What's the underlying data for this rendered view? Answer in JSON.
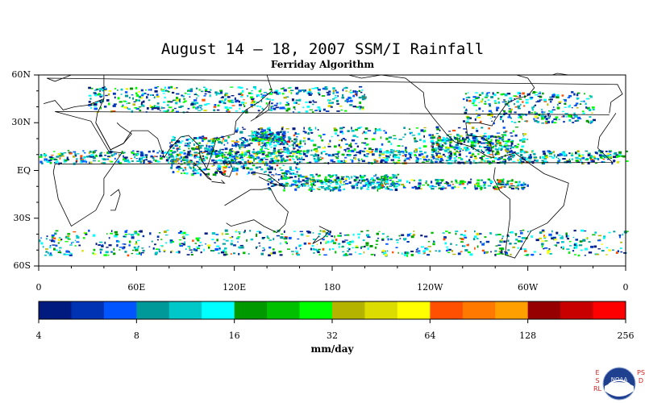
{
  "title": "August 14 – 18, 2007 SSM/I Rainfall",
  "subtitle": "Ferriday Algorithm",
  "map": {
    "lat_labels": [
      "60N",
      "30N",
      "EQ",
      "30S",
      "60S"
    ],
    "lat_values": [
      60,
      30,
      0,
      -30,
      -60
    ],
    "lon_labels": [
      "0",
      "60E",
      "120E",
      "180",
      "120W",
      "60W",
      "0"
    ],
    "lon_values": [
      0,
      60,
      120,
      180,
      240,
      300,
      360
    ],
    "lat_range": [
      -60,
      60
    ],
    "lon_range": [
      0,
      360
    ]
  },
  "colorbar": {
    "units": "mm/day",
    "tick_labels": [
      "4",
      "8",
      "16",
      "32",
      "64",
      "128",
      "256"
    ],
    "colors": [
      "#001a80",
      "#0033b3",
      "#0055ff",
      "#00999a",
      "#00c8c8",
      "#00ffff",
      "#009900",
      "#00c000",
      "#00ff00",
      "#b4b400",
      "#dcdc00",
      "#ffff00",
      "#ff5000",
      "#ff7800",
      "#ffa000",
      "#960000",
      "#c80000",
      "#ff0000"
    ]
  },
  "logo": {
    "name": "noaa-logo",
    "text": "NOAA",
    "side_left": "ESRL",
    "side_right": "PSD"
  }
}
